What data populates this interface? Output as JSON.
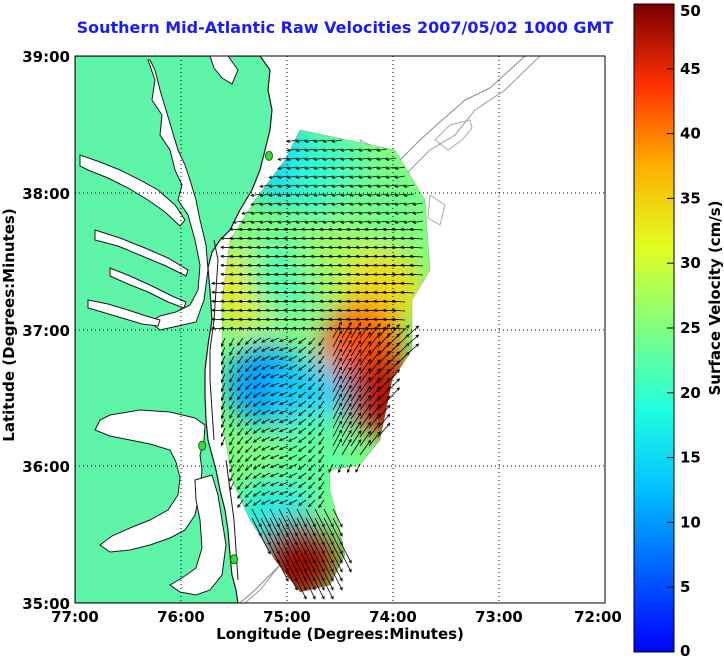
{
  "title": "Southern Mid-Atlantic Raw Velocities 2007/05/02 1000 GMT",
  "axes": {
    "xlabel": "Longitude (Degrees:Minutes)",
    "ylabel": "Latitude (Degrees:Minutes)",
    "x_ticks": [
      "77:00",
      "76:00",
      "75:00",
      "74:00",
      "73:00",
      "72:00"
    ],
    "y_ticks": [
      "39:00",
      "38:00",
      "37:00",
      "36:00",
      "35:00"
    ],
    "xlim_deg_west": [
      77,
      72
    ],
    "ylim_deg_north": [
      35,
      39
    ],
    "grid": "dotted"
  },
  "colorbar": {
    "label": "Surface Velocity (cm/s)",
    "ticks": [
      "50",
      "45",
      "40",
      "35",
      "30",
      "25",
      "20",
      "15",
      "10",
      "5",
      "0"
    ],
    "min": 0,
    "max": 50,
    "colormap": "jet"
  },
  "colors": {
    "land": "#5ff5a8",
    "coastline": "#1a1a1a",
    "bathymetry": "#999999",
    "station": "#33dd33",
    "vectors": "#000000"
  },
  "chart_data": {
    "type": "heatmap",
    "title": "Southern Mid-Atlantic Raw Velocities 2007/05/02 1000 GMT",
    "xlabel": "Longitude (Degrees:Minutes)",
    "ylabel": "Latitude (Degrees:Minutes)",
    "value_label": "Surface Velocity (cm/s)",
    "value_range": [
      0,
      50
    ],
    "stations": [
      {
        "lon": -75.17,
        "lat": 38.27
      },
      {
        "lon": -75.8,
        "lat": 36.15
      },
      {
        "lon": -75.5,
        "lat": 35.32
      }
    ],
    "regions": [
      {
        "lon": -75.0,
        "lat": 38.2,
        "speed": 15
      },
      {
        "lon": -74.6,
        "lat": 38.1,
        "speed": 20
      },
      {
        "lon": -74.2,
        "lat": 37.9,
        "speed": 24
      },
      {
        "lon": -75.4,
        "lat": 37.3,
        "speed": 33
      },
      {
        "lon": -75.0,
        "lat": 37.4,
        "speed": 22
      },
      {
        "lon": -74.5,
        "lat": 37.5,
        "speed": 27
      },
      {
        "lon": -74.1,
        "lat": 37.3,
        "speed": 34
      },
      {
        "lon": -74.3,
        "lat": 36.9,
        "speed": 42
      },
      {
        "lon": -74.1,
        "lat": 36.5,
        "speed": 47
      },
      {
        "lon": -75.2,
        "lat": 36.6,
        "speed": 10
      },
      {
        "lon": -74.8,
        "lat": 36.5,
        "speed": 14
      },
      {
        "lon": -74.7,
        "lat": 36.1,
        "speed": 23
      },
      {
        "lon": -75.1,
        "lat": 35.6,
        "speed": 17
      },
      {
        "lon": -74.9,
        "lat": 35.3,
        "speed": 48
      }
    ]
  }
}
